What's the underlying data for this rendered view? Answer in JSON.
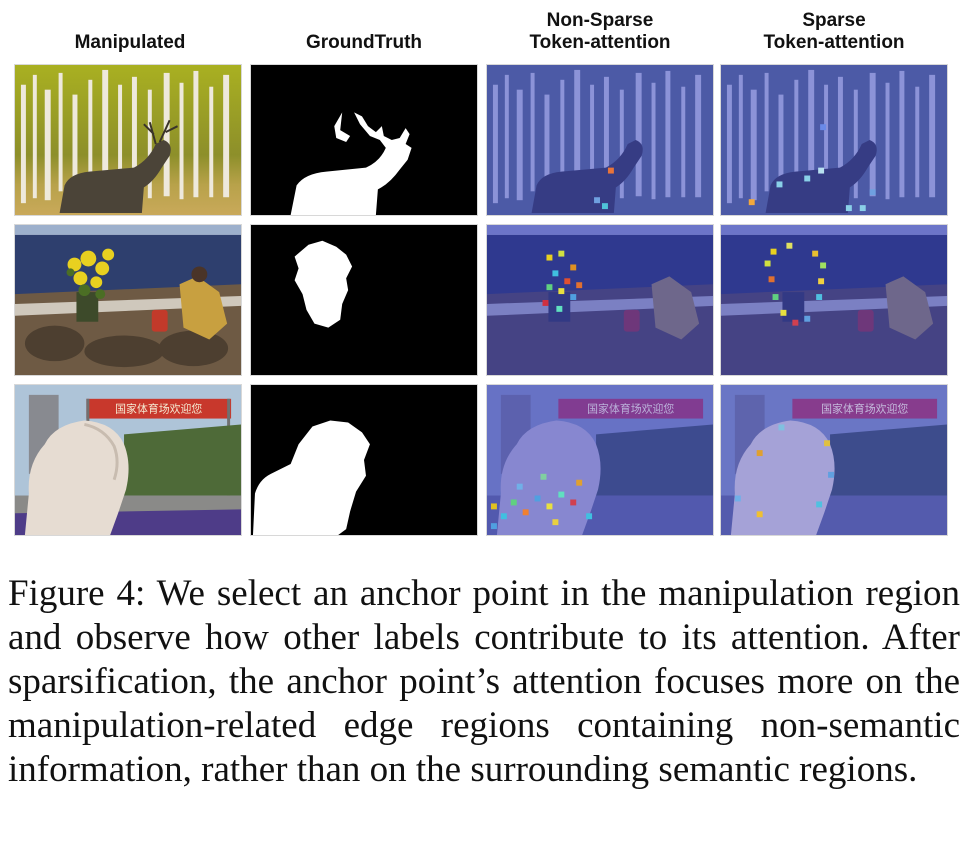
{
  "figure": {
    "column_headers": [
      "Manipulated",
      "GroundTruth",
      "Non-Sparse\nToken-attention",
      "Sparse\nToken-attention"
    ],
    "banner_text": "国家体育场欢迎您",
    "caption": "Figure 4: We select an anchor point in the manipulation region and observe how other labels contribute to its attention. After sparsification, the anchor point’s attention focuses more on the manipulation-related edge regions containing non-semantic information, rather than on the surrounding semantic regions."
  },
  "colors": {
    "attention_overlay": "#3a46c8",
    "mask_white": "#ffffff",
    "mask_black": "#000000"
  }
}
